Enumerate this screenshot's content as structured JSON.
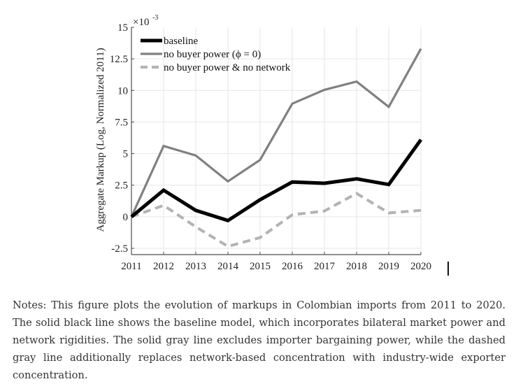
{
  "chart_data": {
    "type": "line",
    "title": "",
    "xlabel": "",
    "ylabel": "Aggregate Markup (Log, Normalized 2011)",
    "y_exponent_label": "×10",
    "y_exponent_power": "-3",
    "x": [
      2011,
      2012,
      2013,
      2014,
      2015,
      2016,
      2017,
      2018,
      2019,
      2020
    ],
    "x_tick_labels": [
      "2011",
      "2012",
      "2013",
      "2014",
      "2015",
      "2016",
      "2017",
      "2018",
      "2019",
      "2020"
    ],
    "ylim": [
      -2.5,
      15
    ],
    "y_ticks": [
      -2.5,
      0,
      2.5,
      5,
      7.5,
      10,
      12.5,
      15
    ],
    "y_tick_labels": [
      "-2.5",
      "0",
      "2.5",
      "5",
      "7.5",
      "10",
      "12.5",
      "15"
    ],
    "grid": true,
    "legend_position": "top-left",
    "series": [
      {
        "name": "baseline",
        "style": "solid-thick",
        "color": "#000000",
        "values": [
          0,
          2.1,
          0.5,
          -0.3,
          1.35,
          2.75,
          2.65,
          3.0,
          2.55,
          6.1
        ]
      },
      {
        "name": "no buyer power (ϕ = 0)",
        "style": "solid",
        "color": "#808080",
        "values": [
          0,
          5.6,
          4.85,
          2.8,
          4.5,
          8.95,
          10.05,
          10.7,
          8.7,
          13.3
        ]
      },
      {
        "name": "no buyer power & no network",
        "style": "dashed",
        "color": "#b3b3b3",
        "values": [
          0,
          0.9,
          -0.8,
          -2.35,
          -1.65,
          0.15,
          0.45,
          1.85,
          0.3,
          0.5
        ]
      }
    ]
  },
  "notes": "Notes: This figure plots the evolution of markups in Colombian imports from 2011 to 2020. The solid black line shows the baseline model, which incorporates bilateral market power and network rigidities. The solid gray line excludes importer bargaining power, while the dashed gray line additionally replaces network-based concentration with industry-wide exporter concentration."
}
